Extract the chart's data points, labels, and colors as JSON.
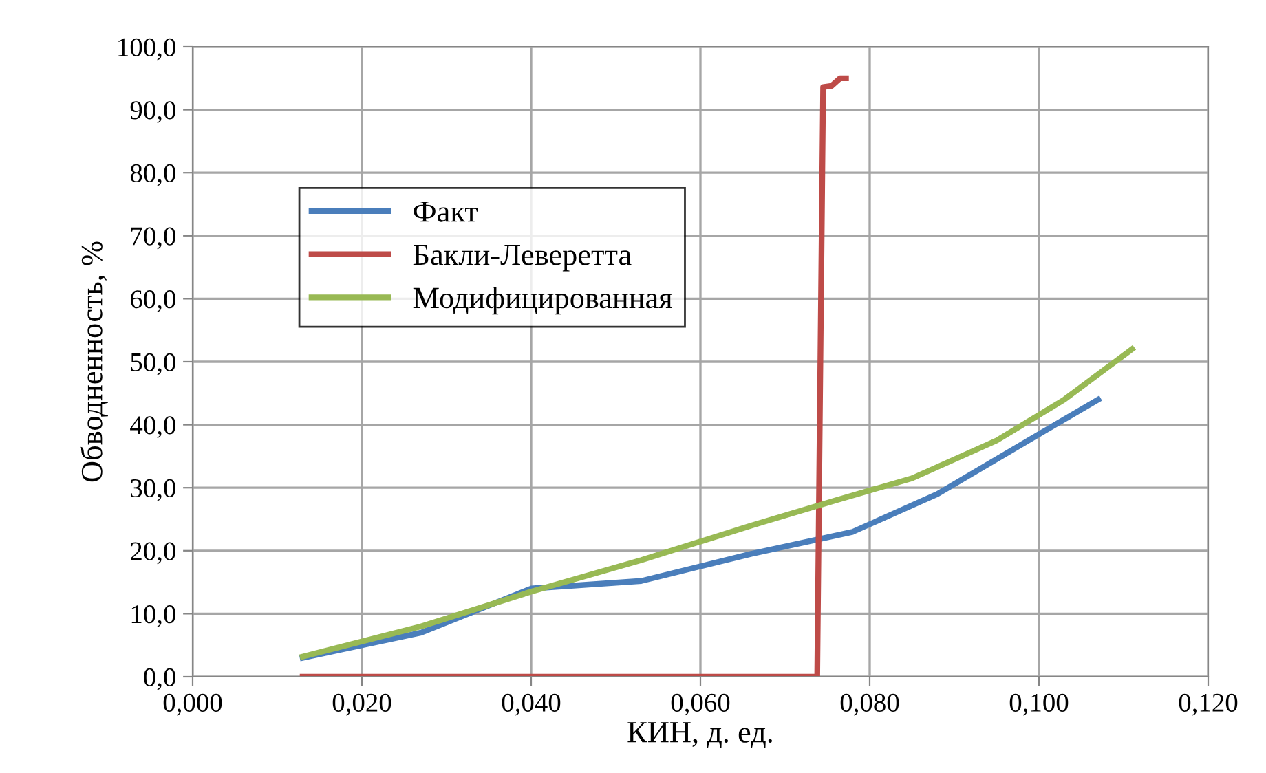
{
  "chart_data": {
    "type": "line",
    "xlabel": "КИН, д. ед.",
    "ylabel": "Обводненность, %",
    "xlim": [
      0,
      0.12
    ],
    "ylim": [
      0,
      100
    ],
    "xticks": [
      {
        "value": 0,
        "label": "0,000"
      },
      {
        "value": 0.02,
        "label": "0,020"
      },
      {
        "value": 0.04,
        "label": "0,040"
      },
      {
        "value": 0.06,
        "label": "0,060"
      },
      {
        "value": 0.08,
        "label": "0,080"
      },
      {
        "value": 0.1,
        "label": "0,100"
      },
      {
        "value": 0.12,
        "label": "0,120"
      }
    ],
    "yticks": [
      {
        "value": 0,
        "label": "0,0"
      },
      {
        "value": 10,
        "label": "10,0"
      },
      {
        "value": 20,
        "label": "20,0"
      },
      {
        "value": 30,
        "label": "30,0"
      },
      {
        "value": 40,
        "label": "40,0"
      },
      {
        "value": 50,
        "label": "50,0"
      },
      {
        "value": 60,
        "label": "60,0"
      },
      {
        "value": 70,
        "label": "70,0"
      },
      {
        "value": 80,
        "label": "80,0"
      },
      {
        "value": 90,
        "label": "90,0"
      },
      {
        "value": 100,
        "label": "100,0"
      }
    ],
    "grid": true,
    "legend": "top left",
    "marker": "none",
    "line_style": "solid",
    "series": [
      {
        "name": "Факт",
        "color": "#4a7ebb",
        "x": [
          0.013,
          0.027,
          0.04,
          0.053,
          0.066,
          0.078,
          0.088,
          0.1,
          0.107
        ],
        "values": [
          3.0,
          7.0,
          14.0,
          15.2,
          19.5,
          23.0,
          29.0,
          38.5,
          44.0
        ]
      },
      {
        "name": "Бакли-Леверетта",
        "color": "#be4b48",
        "x": [
          0.013,
          0.0738,
          0.0745,
          0.0755,
          0.0765,
          0.0772
        ],
        "values": [
          0,
          0,
          93.6,
          93.8,
          95.0,
          95.0
        ]
      },
      {
        "name": "Модифицированная",
        "color": "#98b954",
        "x": [
          0.013,
          0.027,
          0.04,
          0.053,
          0.066,
          0.076,
          0.085,
          0.095,
          0.103,
          0.111
        ],
        "values": [
          3.2,
          8.0,
          13.5,
          18.5,
          24.0,
          28.0,
          31.5,
          37.5,
          44.0,
          52.0
        ]
      }
    ]
  }
}
